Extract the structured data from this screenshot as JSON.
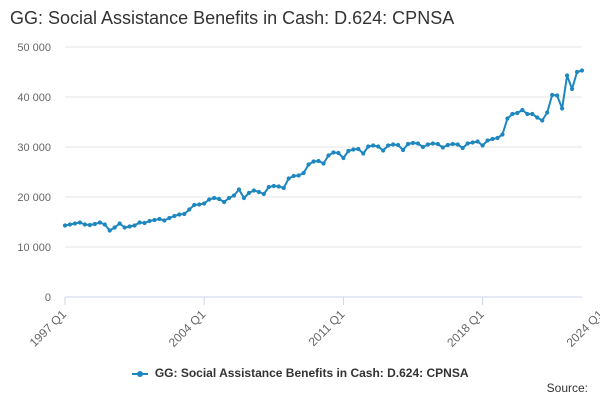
{
  "chart_data": {
    "type": "line",
    "title": "GG: Social Assistance Benefits in Cash: D.624: CPNSA",
    "xlabel": "",
    "ylabel": "",
    "ylim": [
      0,
      50000
    ],
    "yticks": [
      0,
      10000,
      20000,
      30000,
      40000,
      50000
    ],
    "ytick_labels": [
      "0",
      "10 000",
      "20 000",
      "30 000",
      "40 000",
      "50 000"
    ],
    "xtick_labels": [
      "1997 Q1",
      "2004 Q1",
      "2011 Q1",
      "2018 Q1",
      "2024 Q1"
    ],
    "xtick_index": [
      0,
      28,
      56,
      84,
      108
    ],
    "grid": true,
    "legend_position": "bottom-center",
    "series": [
      {
        "name": "GG: Social Assistance Benefits in Cash: D.624: CPNSA",
        "color": "#1f87bf",
        "start": "1997 Q1",
        "values": [
          14300,
          14500,
          14700,
          14900,
          14500,
          14400,
          14600,
          14900,
          14500,
          13300,
          13900,
          14700,
          13900,
          14100,
          14300,
          14900,
          14800,
          15200,
          15400,
          15600,
          15300,
          15800,
          16200,
          16500,
          16600,
          17500,
          18400,
          18500,
          18700,
          19500,
          19800,
          19600,
          19000,
          19800,
          20300,
          21500,
          19800,
          20800,
          21300,
          21000,
          20600,
          22000,
          22200,
          22100,
          21800,
          23700,
          24200,
          24300,
          24800,
          26500,
          27100,
          27200,
          26700,
          28300,
          28900,
          28800,
          27800,
          29200,
          29500,
          29600,
          28700,
          30100,
          30300,
          30100,
          29300,
          30300,
          30500,
          30400,
          29400,
          30600,
          30800,
          30700,
          30000,
          30500,
          30700,
          30600,
          29900,
          30400,
          30600,
          30500,
          29800,
          30700,
          30900,
          31100,
          30300,
          31300,
          31600,
          31800,
          32500,
          35700,
          36600,
          36800,
          37400,
          36600,
          36600,
          35900,
          35300,
          36900,
          40400,
          40300,
          37700,
          44300,
          41600,
          45000,
          45300
        ]
      }
    ]
  },
  "legend": {
    "label": "GG: Social Assistance Benefits in Cash: D.624: CPNSA"
  },
  "source": {
    "label": "Source:"
  }
}
